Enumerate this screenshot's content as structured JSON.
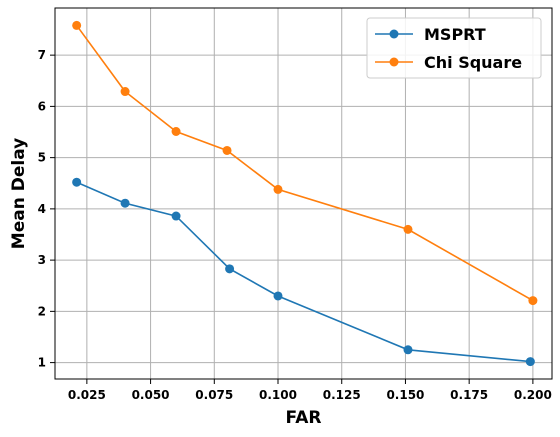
{
  "chart_data": {
    "type": "line",
    "title": "",
    "xlabel": "FAR",
    "ylabel": "Mean Delay",
    "xlim": [
      0.0125,
      0.2075
    ],
    "ylim": [
      0.68,
      7.92
    ],
    "xticks": [
      0.025,
      0.05,
      0.075,
      0.1,
      0.125,
      0.15,
      0.175,
      0.2
    ],
    "xtick_labels": [
      "0.025",
      "0.050",
      "0.075",
      "0.100",
      "0.125",
      "0.150",
      "0.175",
      "0.200"
    ],
    "yticks": [
      1,
      2,
      3,
      4,
      5,
      6,
      7
    ],
    "ytick_labels": [
      "1",
      "2",
      "3",
      "4",
      "5",
      "6",
      "7"
    ],
    "grid": true,
    "legend_position": "top-right",
    "series": [
      {
        "name": "MSPRT",
        "color": "#1f77b4",
        "marker": "circle",
        "x": [
          0.021,
          0.04,
          0.06,
          0.081,
          0.1,
          0.151,
          0.199
        ],
        "y": [
          4.52,
          4.11,
          3.86,
          2.83,
          2.3,
          1.25,
          1.02
        ]
      },
      {
        "name": "Chi Square",
        "color": "#ff7f0e",
        "marker": "circle",
        "x": [
          0.021,
          0.04,
          0.06,
          0.08,
          0.1,
          0.151,
          0.2
        ],
        "y": [
          7.58,
          6.29,
          5.51,
          5.14,
          4.38,
          3.6,
          2.21
        ]
      }
    ]
  }
}
